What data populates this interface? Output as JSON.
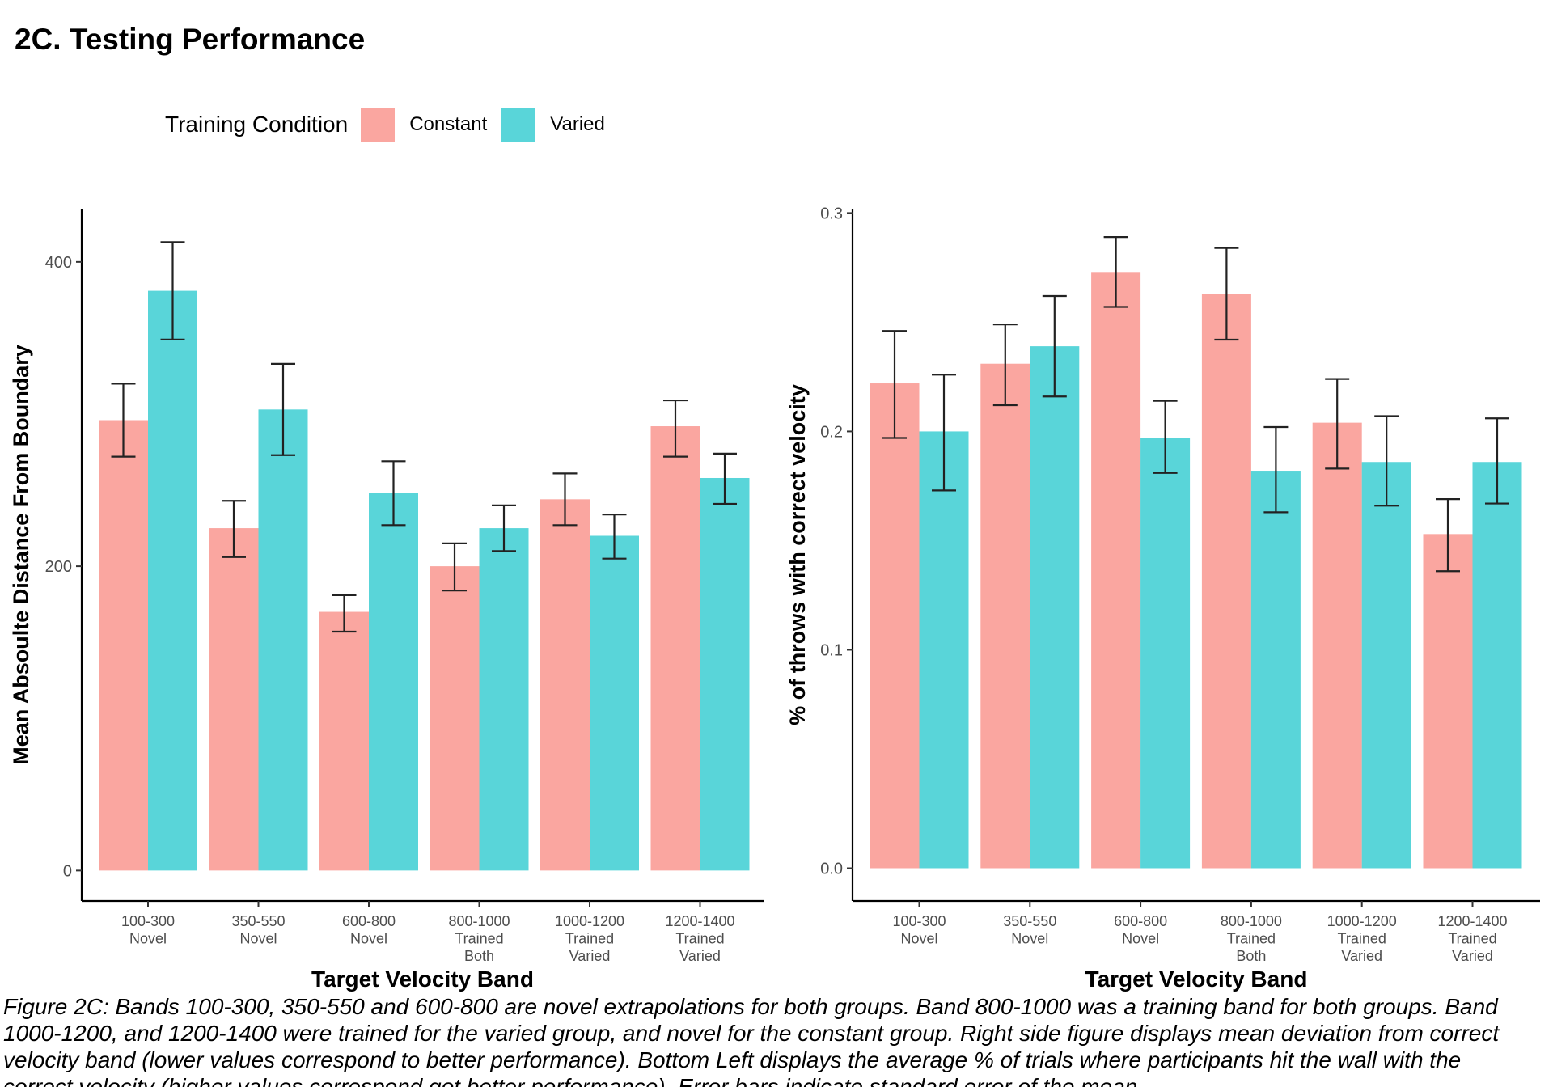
{
  "title": "2C. Testing Performance",
  "legend": {
    "title": "Training Condition",
    "items": [
      {
        "label": "Constant",
        "color": "#F8766D"
      },
      {
        "label": "Varied",
        "color": "#00BFC4"
      }
    ]
  },
  "colors": {
    "constant": "#F8766D",
    "varied": "#00BFC4",
    "bar_opacity": 0.65
  },
  "chart_data": [
    {
      "type": "bar",
      "categories": [
        [
          "100-300",
          "Novel"
        ],
        [
          "350-550",
          "Novel"
        ],
        [
          "600-800",
          "Novel"
        ],
        [
          "800-1000",
          "Trained",
          "Both"
        ],
        [
          "1000-1200",
          "Trained",
          "Varied"
        ],
        [
          "1200-1400",
          "Trained",
          "Varied"
        ]
      ],
      "series": [
        {
          "name": "Constant",
          "values": [
            296,
            225,
            170,
            200,
            244,
            292
          ],
          "se_low": [
            272,
            206,
            157,
            184,
            227,
            272
          ],
          "se_high": [
            320,
            243,
            181,
            215,
            261,
            309
          ]
        },
        {
          "name": "Varied",
          "values": [
            381,
            303,
            248,
            225,
            220,
            258
          ],
          "se_low": [
            349,
            273,
            227,
            210,
            205,
            241
          ],
          "se_high": [
            413,
            333,
            269,
            240,
            234,
            274
          ]
        }
      ],
      "xlabel": "Target Velocity Band",
      "ylabel": "Mean Absoulte Distance From Boundary",
      "ylim": [
        -20,
        435
      ],
      "yticks": [
        0,
        200,
        400
      ],
      "ytick_labels": [
        "0",
        "200",
        "400"
      ]
    },
    {
      "type": "bar",
      "categories": [
        [
          "100-300",
          "Novel"
        ],
        [
          "350-550",
          "Novel"
        ],
        [
          "600-800",
          "Novel"
        ],
        [
          "800-1000",
          "Trained",
          "Both"
        ],
        [
          "1000-1200",
          "Trained",
          "Varied"
        ],
        [
          "1200-1400",
          "Trained",
          "Varied"
        ]
      ],
      "series": [
        {
          "name": "Constant",
          "values": [
            0.222,
            0.231,
            0.273,
            0.263,
            0.204,
            0.153
          ],
          "se_low": [
            0.197,
            0.212,
            0.257,
            0.242,
            0.183,
            0.136
          ],
          "se_high": [
            0.246,
            0.249,
            0.289,
            0.284,
            0.224,
            0.169
          ]
        },
        {
          "name": "Varied",
          "values": [
            0.2,
            0.239,
            0.197,
            0.182,
            0.186,
            0.186
          ],
          "se_low": [
            0.173,
            0.216,
            0.181,
            0.163,
            0.166,
            0.167
          ],
          "se_high": [
            0.226,
            0.262,
            0.214,
            0.202,
            0.207,
            0.206
          ]
        }
      ],
      "xlabel": "Target Velocity Band",
      "ylabel": "% of throws with correct velocity",
      "ylim": [
        -0.015,
        0.302
      ],
      "yticks": [
        0.0,
        0.1,
        0.2,
        0.3
      ],
      "ytick_labels": [
        "0.0",
        "0.1",
        "0.2",
        "0.3"
      ]
    }
  ],
  "caption": [
    "Figure 2C: Bands 100-300, 350-550 and 600-800 are novel extrapolations for both groups. Band 800-1000 was a training band for both groups. Band",
    "1000-1200, and 1200-1400 were trained for the varied group, and novel for the constant group. Right side figure displays mean deviation from correct",
    "velocity band (lower values correspond to better performance). Bottom Left displays the average % of trials where participants hit the wall with the",
    "correct velocity (higher values correspond got better performance). Error bars indicate standard error of the mean."
  ]
}
